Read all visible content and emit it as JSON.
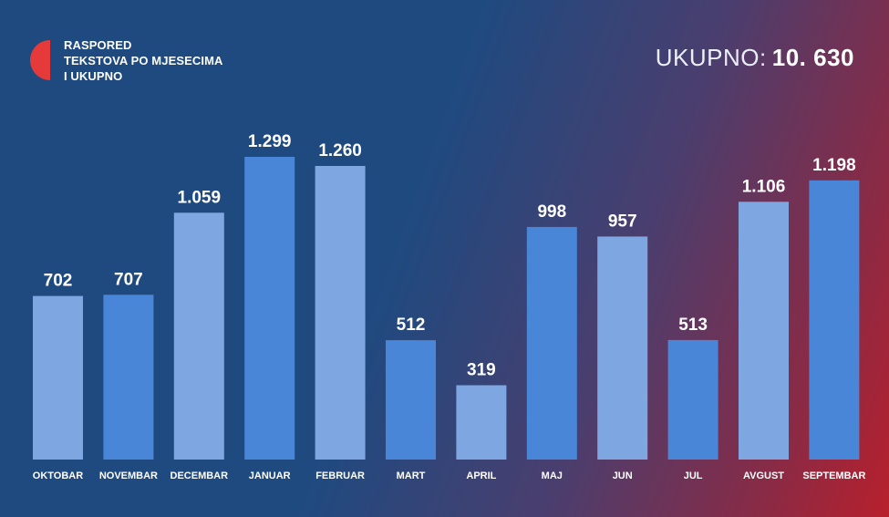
{
  "header": {
    "title_lines": [
      "RASPORED",
      "TEKSTOVA PO MJESECIMA",
      "I UKUPNO"
    ],
    "total_label": "UKUPNO:",
    "total_value": "10. 630"
  },
  "colors": {
    "bar_light": "#7ea6e0",
    "bar_dark": "#4a86d8",
    "logo": "#e63a3a",
    "label": "#ffffff"
  },
  "chart_data": {
    "type": "bar",
    "categories": [
      "OKTOBAR",
      "NOVEMBAR",
      "DECEMBAR",
      "JANUAR",
      "FEBRUAR",
      "MART",
      "APRIL",
      "MAJ",
      "JUN",
      "JUL",
      "AVGUST",
      "SEPTEMBAR"
    ],
    "values": [
      702,
      707,
      1059,
      1299,
      1260,
      512,
      319,
      998,
      957,
      513,
      1106,
      1198
    ],
    "value_labels": [
      "702",
      "707",
      "1.059",
      "1.299",
      "1.260",
      "512",
      "319",
      "998",
      "957",
      "513",
      "1.106",
      "1.198"
    ],
    "bar_shades": [
      "light",
      "dark",
      "light",
      "dark",
      "light",
      "dark",
      "light",
      "dark",
      "light",
      "dark",
      "light",
      "dark"
    ],
    "ylim": [
      0,
      1299
    ],
    "grid": false,
    "legend": "none"
  }
}
